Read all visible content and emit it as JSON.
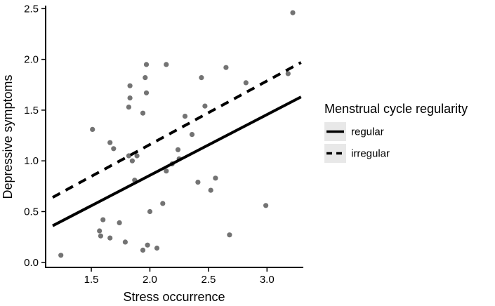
{
  "chart_data": {
    "type": "scatter",
    "title": "",
    "xlabel": "Stress occurrence",
    "ylabel": "Depressive symptoms",
    "xlim": [
      1.11,
      3.31
    ],
    "ylim": [
      -0.05,
      2.53
    ],
    "xticks": [
      1.5,
      2.0,
      2.5,
      3.0
    ],
    "yticks": [
      0.0,
      0.5,
      1.0,
      1.5,
      2.0,
      2.5
    ],
    "xtick_labels": [
      "1.5",
      "2.0",
      "2.5",
      "3.0"
    ],
    "ytick_labels": [
      "0.0",
      "0.5",
      "1.0",
      "1.5",
      "2.0",
      "2.5"
    ],
    "grid": false,
    "point_color": "#5a5a5a",
    "points": [
      [
        3.22,
        2.46
      ],
      [
        1.97,
        1.95
      ],
      [
        2.14,
        1.95
      ],
      [
        2.65,
        1.92
      ],
      [
        3.18,
        1.86
      ],
      [
        1.96,
        1.82
      ],
      [
        2.44,
        1.82
      ],
      [
        2.82,
        1.77
      ],
      [
        1.83,
        1.74
      ],
      [
        1.97,
        1.67
      ],
      [
        1.83,
        1.62
      ],
      [
        2.47,
        1.54
      ],
      [
        1.82,
        1.53
      ],
      [
        1.94,
        1.47
      ],
      [
        2.3,
        1.44
      ],
      [
        1.51,
        1.31
      ],
      [
        2.36,
        1.26
      ],
      [
        1.66,
        1.18
      ],
      [
        1.69,
        1.12
      ],
      [
        2.24,
        1.11
      ],
      [
        1.82,
        1.05
      ],
      [
        1.89,
        1.05
      ],
      [
        1.85,
        1.0
      ],
      [
        2.25,
        1.02
      ],
      [
        2.19,
        0.97
      ],
      [
        2.14,
        0.9
      ],
      [
        2.56,
        0.83
      ],
      [
        1.87,
        0.81
      ],
      [
        2.41,
        0.79
      ],
      [
        2.52,
        0.71
      ],
      [
        2.11,
        0.58
      ],
      [
        2.99,
        0.56
      ],
      [
        2.0,
        0.5
      ],
      [
        1.6,
        0.42
      ],
      [
        1.74,
        0.39
      ],
      [
        1.57,
        0.31
      ],
      [
        1.58,
        0.26
      ],
      [
        1.66,
        0.24
      ],
      [
        1.79,
        0.2
      ],
      [
        2.68,
        0.27
      ],
      [
        1.98,
        0.17
      ],
      [
        2.06,
        0.14
      ],
      [
        1.94,
        0.12
      ],
      [
        1.24,
        0.07
      ]
    ],
    "lines": [
      {
        "name": "regular",
        "style": "solid",
        "x": [
          1.17,
          3.29
        ],
        "y": [
          0.36,
          1.63
        ],
        "color": "#000000",
        "width": 4
      },
      {
        "name": "irregular",
        "style": "dashed",
        "x": [
          1.17,
          3.29
        ],
        "y": [
          0.64,
          1.97
        ],
        "color": "#000000",
        "width": 4
      }
    ],
    "legend": {
      "title": "Menstrual cycle regularity",
      "position": "right",
      "key_bg": "#e8e8e8",
      "entries": [
        {
          "label": "regular",
          "style": "solid"
        },
        {
          "label": "irregular",
          "style": "dashed"
        }
      ]
    }
  }
}
